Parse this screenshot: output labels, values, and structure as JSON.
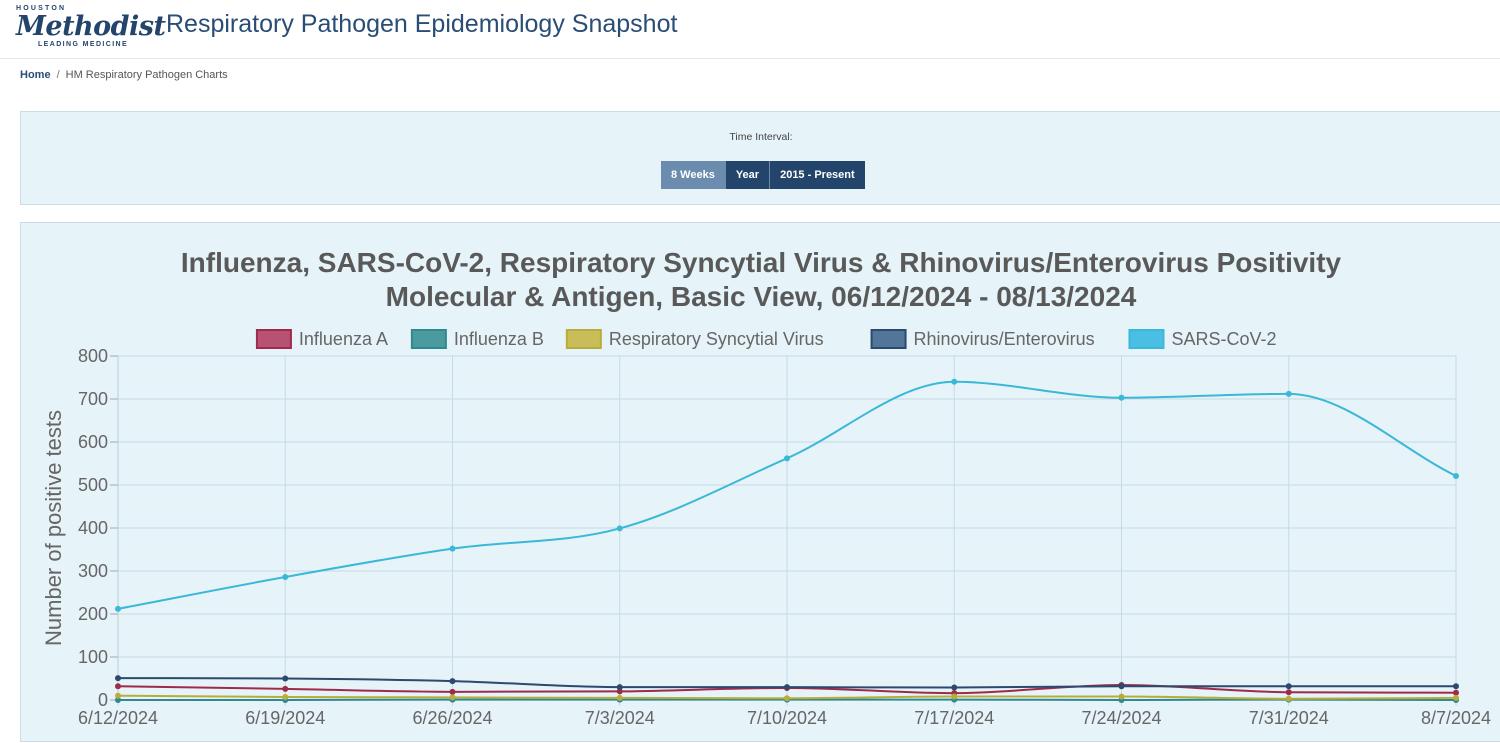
{
  "header": {
    "logo_top": "HOUSTON",
    "logo_main": "Methodist",
    "logo_sub": "LEADING MEDICINE",
    "title": "Respiratory Pathogen Epidemiology Snapshot"
  },
  "breadcrumb": {
    "home": "Home",
    "separator": "/",
    "current": "HM Respiratory Pathogen Charts"
  },
  "interval": {
    "label": "Time Interval:",
    "buttons": [
      {
        "label": "8 Weeks",
        "active": true
      },
      {
        "label": "Year",
        "active": false
      },
      {
        "label": "2015 - Present",
        "active": false
      }
    ]
  },
  "colors": {
    "influenza_a": "#9e2b4a",
    "influenza_b": "#2f8a8f",
    "rsv": "#b8ad3c",
    "rhino": "#2c4a6e",
    "sars": "#3ab8d8",
    "legend_influenza_a": "#b85273",
    "legend_influenza_b": "#4a9aa0",
    "legend_rsv": "#c9bd5a",
    "legend_rhino": "#52759a",
    "legend_sars": "#4bbfe3"
  },
  "chart_data": {
    "type": "line",
    "title": "Influenza, SARS-CoV-2, Respiratory Syncytial Virus & Rhinovirus/Enterovirus Positivity",
    "subtitle": "Molecular & Antigen, Basic View, 06/12/2024 - 08/13/2024",
    "xlabel": "",
    "ylabel": "Number of positive tests",
    "ylim": [
      0,
      800
    ],
    "yticks": [
      0,
      100,
      200,
      300,
      400,
      500,
      600,
      700,
      800
    ],
    "grid": true,
    "legend_position": "top-center",
    "categories": [
      "6/12/2024",
      "6/19/2024",
      "6/26/2024",
      "7/3/2024",
      "7/10/2024",
      "7/17/2024",
      "7/24/2024",
      "7/31/2024",
      "8/7/2024"
    ],
    "series": [
      {
        "key": "influenza_a",
        "name": "Influenza A",
        "values": [
          32,
          26,
          19,
          20,
          28,
          16,
          35,
          18,
          17
        ]
      },
      {
        "key": "influenza_b",
        "name": "Influenza B",
        "values": [
          0,
          0,
          1,
          1,
          1,
          1,
          0,
          1,
          0
        ]
      },
      {
        "key": "rsv",
        "name": "Respiratory Syncytial Virus",
        "values": [
          10,
          7,
          6,
          5,
          4,
          8,
          8,
          3,
          5
        ]
      },
      {
        "key": "rhino",
        "name": "Rhinovirus/Enterovirus",
        "values": [
          51,
          50,
          44,
          30,
          30,
          29,
          32,
          32,
          32
        ]
      },
      {
        "key": "sars",
        "name": "SARS-CoV-2",
        "values": [
          212,
          286,
          352,
          399,
          562,
          740,
          703,
          712,
          521
        ]
      }
    ]
  }
}
